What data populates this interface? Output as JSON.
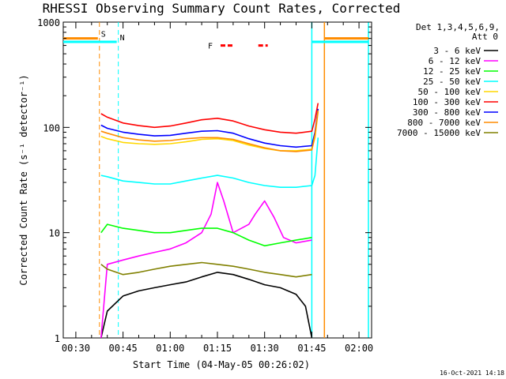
{
  "chart_data": {
    "type": "line",
    "title": "RHESSI Observing Summary Count Rates, Corrected",
    "xlabel": "Start Time (04-May-05 00:26:02)",
    "ylabel": "Corrected Count Rate (s⁻¹ detector⁻¹)",
    "y_scale": "log",
    "ylim": [
      1,
      1000
    ],
    "xlim": [
      "00:26",
      "02:04"
    ],
    "x_ticks": [
      "00:30",
      "00:45",
      "01:00",
      "01:15",
      "01:30",
      "01:45",
      "02:00"
    ],
    "y_ticks": [
      "1",
      "10",
      "100",
      "1000"
    ],
    "legend_header": [
      "Det 1,3,4,5,6,9,",
      "Att 0"
    ],
    "legend_position": "right",
    "series": [
      {
        "name": "3 - 6 keV",
        "color": "#000000",
        "x": [
          "00:38",
          "00:40",
          "00:45",
          "00:50",
          "00:55",
          "01:00",
          "01:05",
          "01:10",
          "01:15",
          "01:20",
          "01:25",
          "01:30",
          "01:35",
          "01:40",
          "01:43",
          "01:45"
        ],
        "values": [
          1.0,
          1.8,
          2.5,
          2.8,
          3.0,
          3.2,
          3.4,
          3.8,
          4.2,
          4.0,
          3.6,
          3.2,
          3.0,
          2.6,
          2.0,
          1.0
        ]
      },
      {
        "name": "6 - 12 keV",
        "color": "#ff00ff",
        "x": [
          "00:38",
          "00:40",
          "00:45",
          "00:50",
          "00:55",
          "01:00",
          "01:05",
          "01:10",
          "01:13",
          "01:15",
          "01:17",
          "01:20",
          "01:25",
          "01:27",
          "01:30",
          "01:33",
          "01:36",
          "01:40",
          "01:45"
        ],
        "values": [
          1.0,
          5.0,
          5.5,
          6.0,
          6.5,
          7.0,
          8.0,
          10.0,
          15.0,
          30.0,
          20.0,
          10.0,
          12.0,
          15.0,
          20.0,
          14.0,
          9.0,
          8.0,
          8.5
        ]
      },
      {
        "name": "12 - 25 keV",
        "color": "#00ff00",
        "x": [
          "00:38",
          "00:40",
          "00:45",
          "00:50",
          "00:55",
          "01:00",
          "01:05",
          "01:10",
          "01:15",
          "01:20",
          "01:25",
          "01:30",
          "01:35",
          "01:40",
          "01:45"
        ],
        "values": [
          10.0,
          12.0,
          11.0,
          10.5,
          10.0,
          10.0,
          10.5,
          11.0,
          11.0,
          10.0,
          8.5,
          7.5,
          8.0,
          8.5,
          9.0
        ]
      },
      {
        "name": "25 - 50 keV",
        "color": "#00ffff",
        "x": [
          "00:38",
          "00:40",
          "00:45",
          "00:50",
          "00:55",
          "01:00",
          "01:05",
          "01:10",
          "01:15",
          "01:20",
          "01:25",
          "01:30",
          "01:35",
          "01:40",
          "01:45",
          "01:46",
          "01:47"
        ],
        "values": [
          35.0,
          34.0,
          31.0,
          30.0,
          29.0,
          29.0,
          31.0,
          33.0,
          35.0,
          33.0,
          30.0,
          28.0,
          27.0,
          27.0,
          28.0,
          35.0,
          80.0
        ]
      },
      {
        "name": "50 - 100 keV",
        "color": "#ffd700",
        "x": [
          "00:38",
          "00:40",
          "00:45",
          "00:50",
          "00:55",
          "01:00",
          "01:05",
          "01:10",
          "01:15",
          "01:20",
          "01:25",
          "01:30",
          "01:35",
          "01:40",
          "01:45",
          "01:46",
          "01:47"
        ],
        "values": [
          82.0,
          78.0,
          72.0,
          70.0,
          69.0,
          70.0,
          73.0,
          77.0,
          78.0,
          75.0,
          68.0,
          63.0,
          60.0,
          60.0,
          62.0,
          80.0,
          140.0
        ]
      },
      {
        "name": "100 - 300 keV",
        "color": "#ff0000",
        "x": [
          "00:38",
          "00:40",
          "00:45",
          "00:50",
          "00:55",
          "01:00",
          "01:05",
          "01:10",
          "01:15",
          "01:20",
          "01:25",
          "01:30",
          "01:35",
          "01:40",
          "01:45",
          "01:46",
          "01:47"
        ],
        "values": [
          135.0,
          125.0,
          110.0,
          104.0,
          100.0,
          103.0,
          110.0,
          118.0,
          122.0,
          115.0,
          103.0,
          95.0,
          90.0,
          88.0,
          92.0,
          120.0,
          170.0
        ]
      },
      {
        "name": "300 - 800 keV",
        "color": "#0000ff",
        "x": [
          "00:38",
          "00:40",
          "00:45",
          "00:50",
          "00:55",
          "01:00",
          "01:05",
          "01:10",
          "01:15",
          "01:20",
          "01:25",
          "01:30",
          "01:35",
          "01:40",
          "01:45",
          "01:46",
          "01:47"
        ],
        "values": [
          105.0,
          98.0,
          90.0,
          86.0,
          83.0,
          84.0,
          88.0,
          92.0,
          93.0,
          88.0,
          78.0,
          71.0,
          67.0,
          65.0,
          67.0,
          90.0,
          150.0
        ]
      },
      {
        "name": "800 - 7000 keV",
        "color": "#ff8c00",
        "x": [
          "00:38",
          "00:40",
          "00:45",
          "00:50",
          "00:55",
          "01:00",
          "01:05",
          "01:10",
          "01:15",
          "01:20",
          "01:25",
          "01:30",
          "01:35",
          "01:40",
          "01:45",
          "01:46",
          "01:47"
        ],
        "values": [
          92.0,
          88.0,
          80.0,
          76.0,
          74.0,
          75.0,
          78.0,
          80.0,
          80.0,
          77.0,
          70.0,
          64.0,
          60.0,
          59.0,
          61.0,
          85.0,
          145.0
        ]
      },
      {
        "name": "7000 - 15000 keV",
        "color": "#808000",
        "x": [
          "00:38",
          "00:40",
          "00:45",
          "00:50",
          "00:55",
          "01:00",
          "01:05",
          "01:10",
          "01:15",
          "01:20",
          "01:25",
          "01:30",
          "01:35",
          "01:40",
          "01:45"
        ],
        "values": [
          5.0,
          4.5,
          4.0,
          4.2,
          4.5,
          4.8,
          5.0,
          5.2,
          5.0,
          4.8,
          4.5,
          4.2,
          4.0,
          3.8,
          4.0
        ]
      }
    ],
    "annotations": [
      {
        "label": "S",
        "color": "#ff8c00",
        "x_start": "00:26",
        "x_end": "00:37",
        "line": "00:37.5",
        "level": 700
      },
      {
        "label": "N",
        "color": "#00ffff",
        "x_start": "00:26",
        "x_end": "00:43",
        "line": "00:43.5",
        "level": 650
      },
      {
        "label": "F",
        "color": "#ff0000",
        "flare_segments": [
          [
            "01:16",
            "01:20"
          ],
          [
            "01:28",
            "01:31"
          ]
        ],
        "level": 600
      }
    ],
    "marker_lines": [
      {
        "color": "#00ffff",
        "x": "01:45"
      },
      {
        "color": "#ff8c00",
        "x": "01:49"
      },
      {
        "color": "#00ffff",
        "x": "02:03"
      }
    ],
    "plateaus": [
      {
        "color": "#00ffff",
        "x_start": "01:45",
        "x_end": "02:03",
        "level": 650
      },
      {
        "color": "#ff8c00",
        "x_start": "01:49",
        "x_end": "02:03",
        "level": 700
      }
    ],
    "grid": false
  },
  "footer": {
    "timestamp": "16-Oct-2021 14:18"
  }
}
